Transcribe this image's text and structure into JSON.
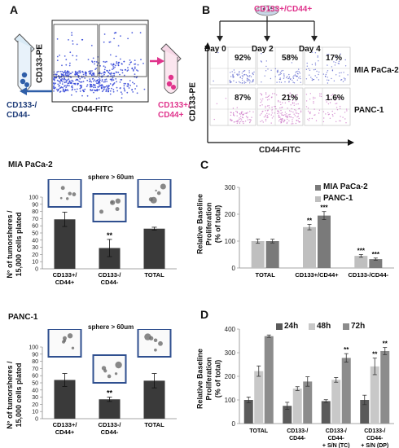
{
  "panel_letters": {
    "a": "A",
    "b": "B",
    "c": "C",
    "d": "D"
  },
  "panel_a": {
    "y_axis": "CD133-PE",
    "x_axis": "CD44-FITC",
    "left_population": [
      "CD133-/",
      "CD44-"
    ],
    "right_population": [
      "CD133+/",
      "CD44+"
    ],
    "colors": {
      "dots": "#2b3fd6",
      "arrow_left": "#2e5ea8",
      "arrow_right": "#e0338c",
      "text_pink": "#e0338c",
      "text_blue": "#1f3d7a"
    }
  },
  "panel_b": {
    "sort_label": "CD133+/CD44+",
    "days": [
      "Day 0",
      "Day 2",
      "Day 4"
    ],
    "rows": [
      {
        "name": "MIA PaCa-2",
        "percents": [
          "92%",
          "58%",
          "17%"
        ],
        "dot_color": "#4b56c8"
      },
      {
        "name": "PANC-1",
        "percents": [
          "87%",
          "21%",
          "1.6%"
        ],
        "dot_color": "#c86ac0"
      }
    ],
    "y_axis": "CD133-PE",
    "x_axis": "CD44-FITC"
  },
  "sphere_mia": {
    "title": "MIA PaCa-2",
    "note": "sphere > 60um",
    "ylabel": [
      "N° of tumorsheres /",
      "15,000 cells plated"
    ],
    "sig": "**"
  },
  "sphere_panc": {
    "title": "PANC-1",
    "note": "sphere > 60um",
    "ylabel": [
      "N° of tumorsheres /",
      "15,000 cells plated"
    ],
    "sig": "**"
  },
  "panel_c": {
    "legend": [
      "MIA PaCa-2",
      "PANC-1"
    ],
    "ylabel": [
      "Relative Baseline",
      "Proliferation",
      "(% of total)"
    ]
  },
  "panel_d": {
    "legend": [
      "24h",
      "48h",
      "72h"
    ],
    "ylabel": [
      "Relative Baseline",
      "Proliferation",
      "(% of total)"
    ]
  },
  "chart_data": [
    {
      "type": "bar",
      "id": "mia_spheres",
      "categories": [
        [
          "CD133+/",
          "CD44+"
        ],
        [
          "CD133-/",
          "CD44-"
        ],
        [
          "TOTAL"
        ]
      ],
      "values": [
        69,
        29,
        56
      ],
      "errors": [
        10,
        12,
        2
      ],
      "ylim": [
        0,
        100
      ],
      "yticks": [
        0,
        10,
        20,
        30,
        40,
        50,
        60,
        70,
        80,
        90,
        100
      ],
      "colors": {
        "bar": "#3a3a3a"
      }
    },
    {
      "type": "bar",
      "id": "panc_spheres",
      "categories": [
        [
          "CD133+/",
          "CD44+"
        ],
        [
          "CD133-/",
          "CD44-"
        ],
        [
          "TOTAL"
        ]
      ],
      "values": [
        54,
        27,
        53
      ],
      "errors": [
        9,
        3,
        10
      ],
      "ylim": [
        0,
        100
      ],
      "yticks": [
        0,
        10,
        20,
        30,
        40,
        50,
        60,
        70,
        80,
        90,
        100
      ],
      "colors": {
        "bar": "#3a3a3a"
      }
    },
    {
      "type": "bar",
      "id": "panel_c",
      "categories": [
        "TOTAL",
        "CD133+/CD44+",
        "CD133-/CD44-"
      ],
      "series": [
        {
          "name": "PANC-1",
          "values": [
            100,
            152,
            45
          ],
          "errors": [
            8,
            10,
            5
          ],
          "sig": [
            "",
            "**",
            "***"
          ],
          "color": "#bfbfbf"
        },
        {
          "name": "MIA PaCa-2",
          "values": [
            100,
            195,
            33
          ],
          "errors": [
            7,
            15,
            4
          ],
          "sig": [
            "",
            "***",
            "***"
          ],
          "color": "#7a7a7a"
        }
      ],
      "ylim": [
        0,
        300
      ],
      "yticks": [
        0,
        100,
        200,
        300
      ]
    },
    {
      "type": "bar",
      "id": "panel_d",
      "categories": [
        [
          "TOTAL"
        ],
        [
          "CD133-/",
          "CD44-"
        ],
        [
          "CD133-/",
          "CD44-",
          "+ S/N (TC)"
        ],
        [
          "CD133-/",
          "CD44-",
          "+ S/N (DP)"
        ]
      ],
      "series": [
        {
          "name": "24h",
          "values": [
            100,
            75,
            95,
            100
          ],
          "errors": [
            12,
            15,
            6,
            20
          ],
          "sig": [
            "",
            "",
            "",
            ""
          ],
          "color": "#5a5a5a"
        },
        {
          "name": "48h",
          "values": [
            222,
            148,
            185,
            242
          ],
          "errors": [
            22,
            8,
            10,
            35
          ],
          "sig": [
            "",
            "",
            "",
            "**"
          ],
          "color": "#c8c8c8"
        },
        {
          "name": "72h",
          "values": [
            370,
            178,
            278,
            307
          ],
          "errors": [
            5,
            20,
            18,
            15
          ],
          "sig": [
            "",
            "",
            "**",
            "**"
          ],
          "color": "#8c8c8c"
        }
      ],
      "ylim": [
        0,
        400
      ],
      "yticks": [
        0,
        100,
        200,
        300,
        400
      ]
    }
  ]
}
